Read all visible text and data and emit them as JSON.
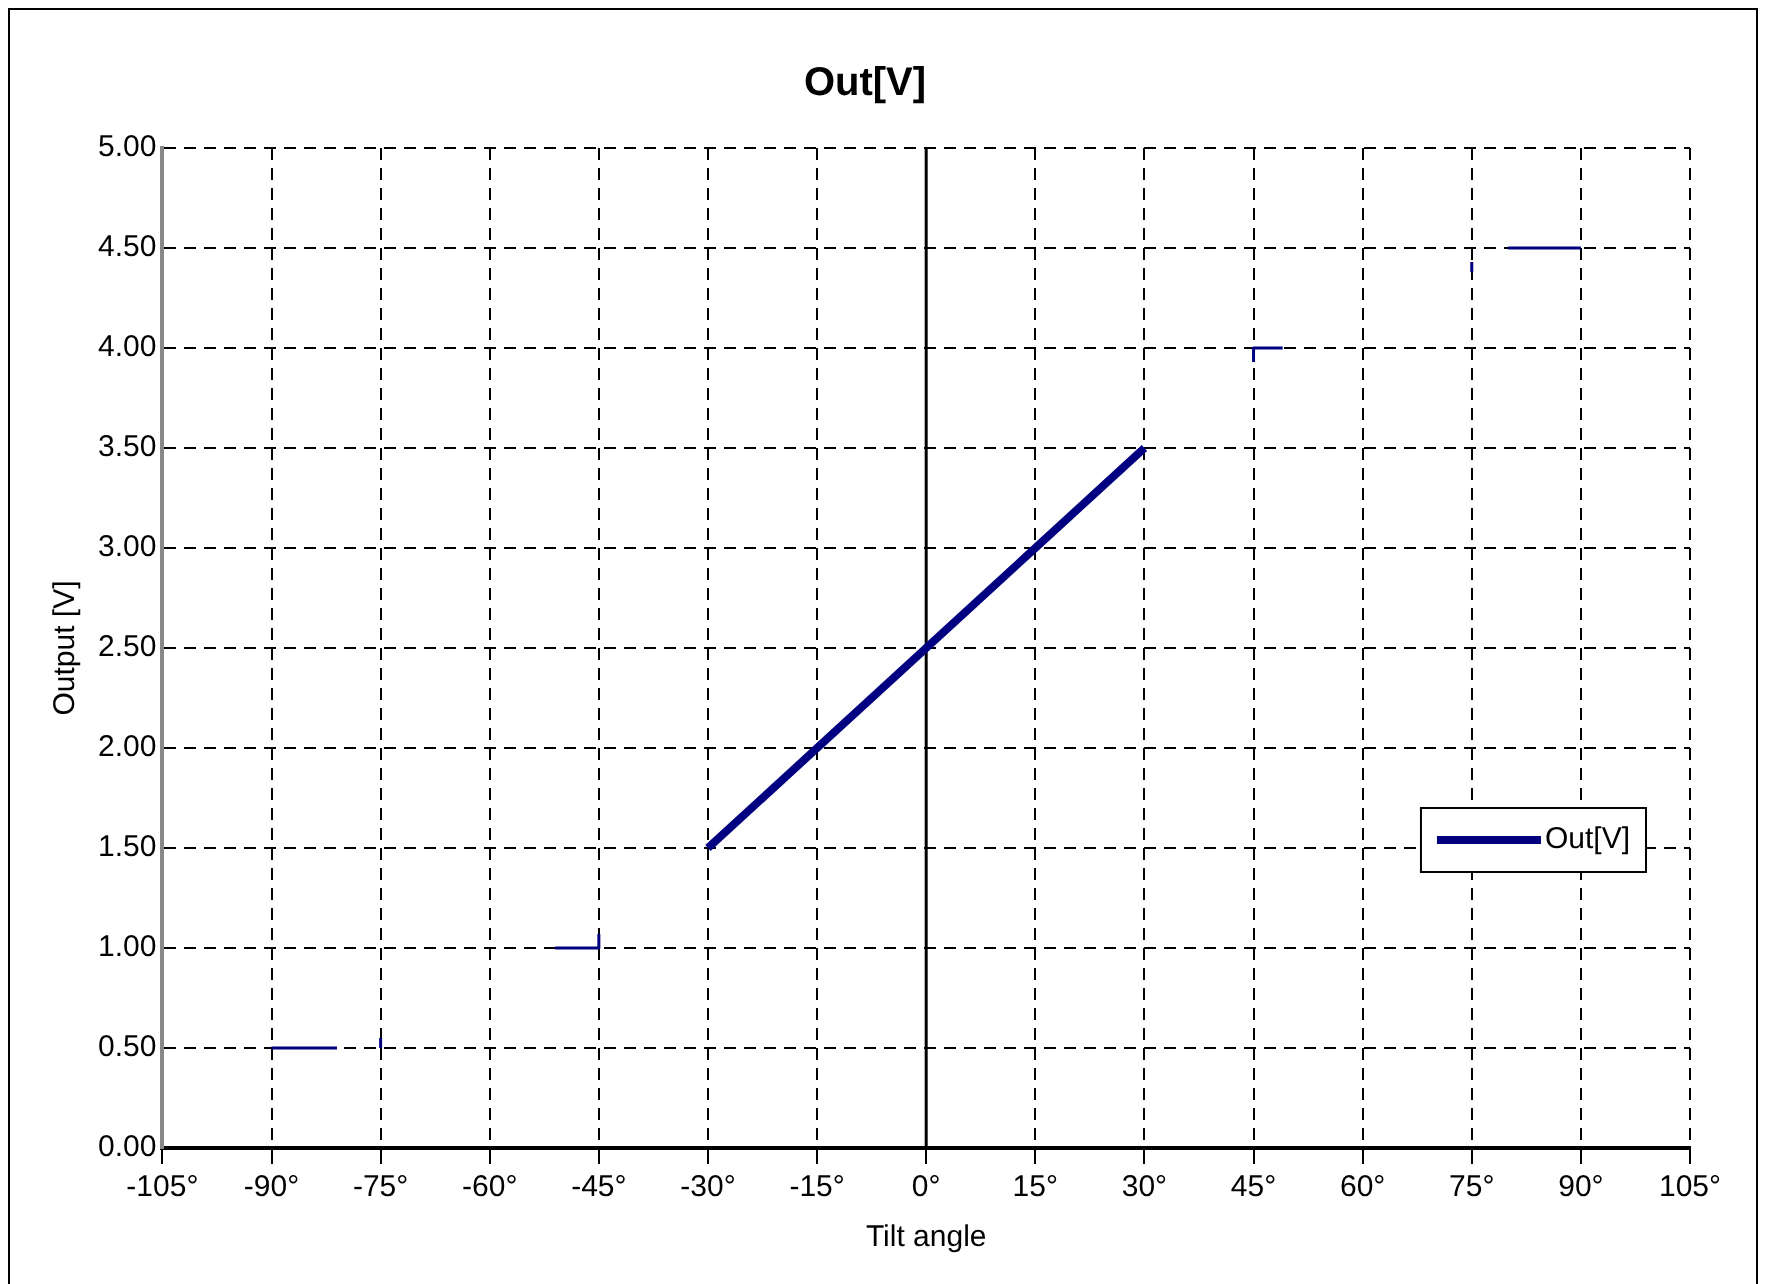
{
  "chart_data": {
    "type": "line",
    "title": "Out[V]",
    "xlabel": "Tilt angle",
    "ylabel": "Output [V]",
    "xlim": [
      -105,
      105
    ],
    "xticks": [
      {
        "value": -105,
        "label": "-105°"
      },
      {
        "value": -90,
        "label": "-90°"
      },
      {
        "value": -75,
        "label": "-75°"
      },
      {
        "value": -60,
        "label": "-60°"
      },
      {
        "value": -45,
        "label": "-45°"
      },
      {
        "value": -30,
        "label": "-30°"
      },
      {
        "value": -15,
        "label": "-15°"
      },
      {
        "value": 0,
        "label": "0°"
      },
      {
        "value": 15,
        "label": "15°"
      },
      {
        "value": 30,
        "label": "30°"
      },
      {
        "value": 45,
        "label": "45°"
      },
      {
        "value": 60,
        "label": "60°"
      },
      {
        "value": 75,
        "label": "75°"
      },
      {
        "value": 90,
        "label": "90°"
      },
      {
        "value": 105,
        "label": "105°"
      }
    ],
    "ylim": [
      0,
      5
    ],
    "yticks": [
      {
        "value": 0,
        "label": "0.00"
      },
      {
        "value": 0.5,
        "label": "0.50"
      },
      {
        "value": 1,
        "label": "1.00"
      },
      {
        "value": 1.5,
        "label": "1.50"
      },
      {
        "value": 2,
        "label": "2.00"
      },
      {
        "value": 2.5,
        "label": "2.50"
      },
      {
        "value": 3,
        "label": "3.00"
      },
      {
        "value": 3.5,
        "label": "3.50"
      },
      {
        "value": 4,
        "label": "4.00"
      },
      {
        "value": 4.5,
        "label": "4.50"
      },
      {
        "value": 5,
        "label": "5.00"
      }
    ],
    "grid": true,
    "legend": "right",
    "line_style": "dashed",
    "series": [
      {
        "name": "Out[V]",
        "color": "#000080",
        "line_style": "solid",
        "x": [
          -30,
          -15,
          0,
          15,
          30
        ],
        "values": [
          1.5,
          2.0,
          2.5,
          3.0,
          3.5
        ]
      },
      {
        "color": "#000080",
        "line_style": "solid",
        "x": [
          -90,
          -81,
          -78,
          -75,
          -75,
          -60,
          -51,
          -45,
          -45,
          0,
          45,
          45,
          49,
          60,
          75,
          75,
          78,
          80,
          90
        ],
        "values": [
          0.5,
          0.5,
          null,
          0.5,
          0.55,
          null,
          1.0,
          1.0,
          1.07,
          null,
          3.93,
          4.0,
          4.0,
          null,
          4.38,
          4.43,
          null,
          4.5,
          4.5
        ]
      }
    ]
  }
}
